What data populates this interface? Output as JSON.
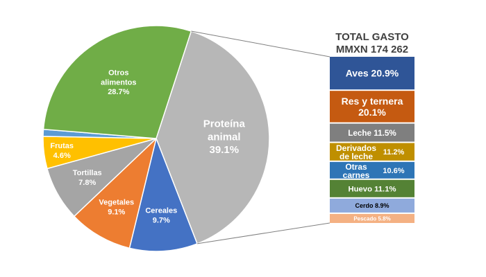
{
  "chart_data": [
    {
      "type": "pie",
      "slices": [
        {
          "label": "Proteína animal",
          "value": 39.1,
          "display": "39.1%",
          "color": "#b7b7b7"
        },
        {
          "label": "Cereales",
          "value": 9.7,
          "display": "9.7%",
          "color": "#4472c4"
        },
        {
          "label": "Vegetales",
          "value": 9.1,
          "display": "9.1%",
          "color": "#ed7d31"
        },
        {
          "label": "Tortillas",
          "value": 7.8,
          "display": "7.8%",
          "color": "#a5a5a5"
        },
        {
          "label": "Frutas",
          "value": 4.6,
          "display": "4.6%",
          "color": "#ffc000"
        },
        {
          "label": "",
          "value": 1.0,
          "display": "",
          "color": "#5b9bd5"
        },
        {
          "label": "Otros alimentos",
          "value": 28.7,
          "display": "28.7%",
          "color": "#70ad47"
        }
      ]
    },
    {
      "type": "bar",
      "orientation": "stacked-column",
      "title_line1": "TOTAL GASTO",
      "title_line2": "MMXN 174 262",
      "segments": [
        {
          "label": "Aves",
          "value": 20.9,
          "display": "20.9%",
          "color": "#2f5597"
        },
        {
          "label": "Res y ternera",
          "value": 20.1,
          "display": "20.1%",
          "color": "#c55a11"
        },
        {
          "label": "Leche",
          "value": 11.5,
          "display": "11.5%",
          "color": "#7f7f7f"
        },
        {
          "label": "Derivados de leche",
          "value": 11.2,
          "display": "11.2%",
          "color": "#bf8f00"
        },
        {
          "label": "Otras carnes",
          "value": 10.6,
          "display": "10.6%",
          "color": "#2e75b6"
        },
        {
          "label": "Huevo",
          "value": 11.1,
          "display": "11.1%",
          "color": "#548235"
        },
        {
          "label": "Cerdo",
          "value": 8.9,
          "display": "8.9%",
          "color": "#8faadc"
        },
        {
          "label": "Pescado",
          "value": 5.8,
          "display": "5.8%",
          "color": "#f4b183"
        }
      ]
    }
  ]
}
